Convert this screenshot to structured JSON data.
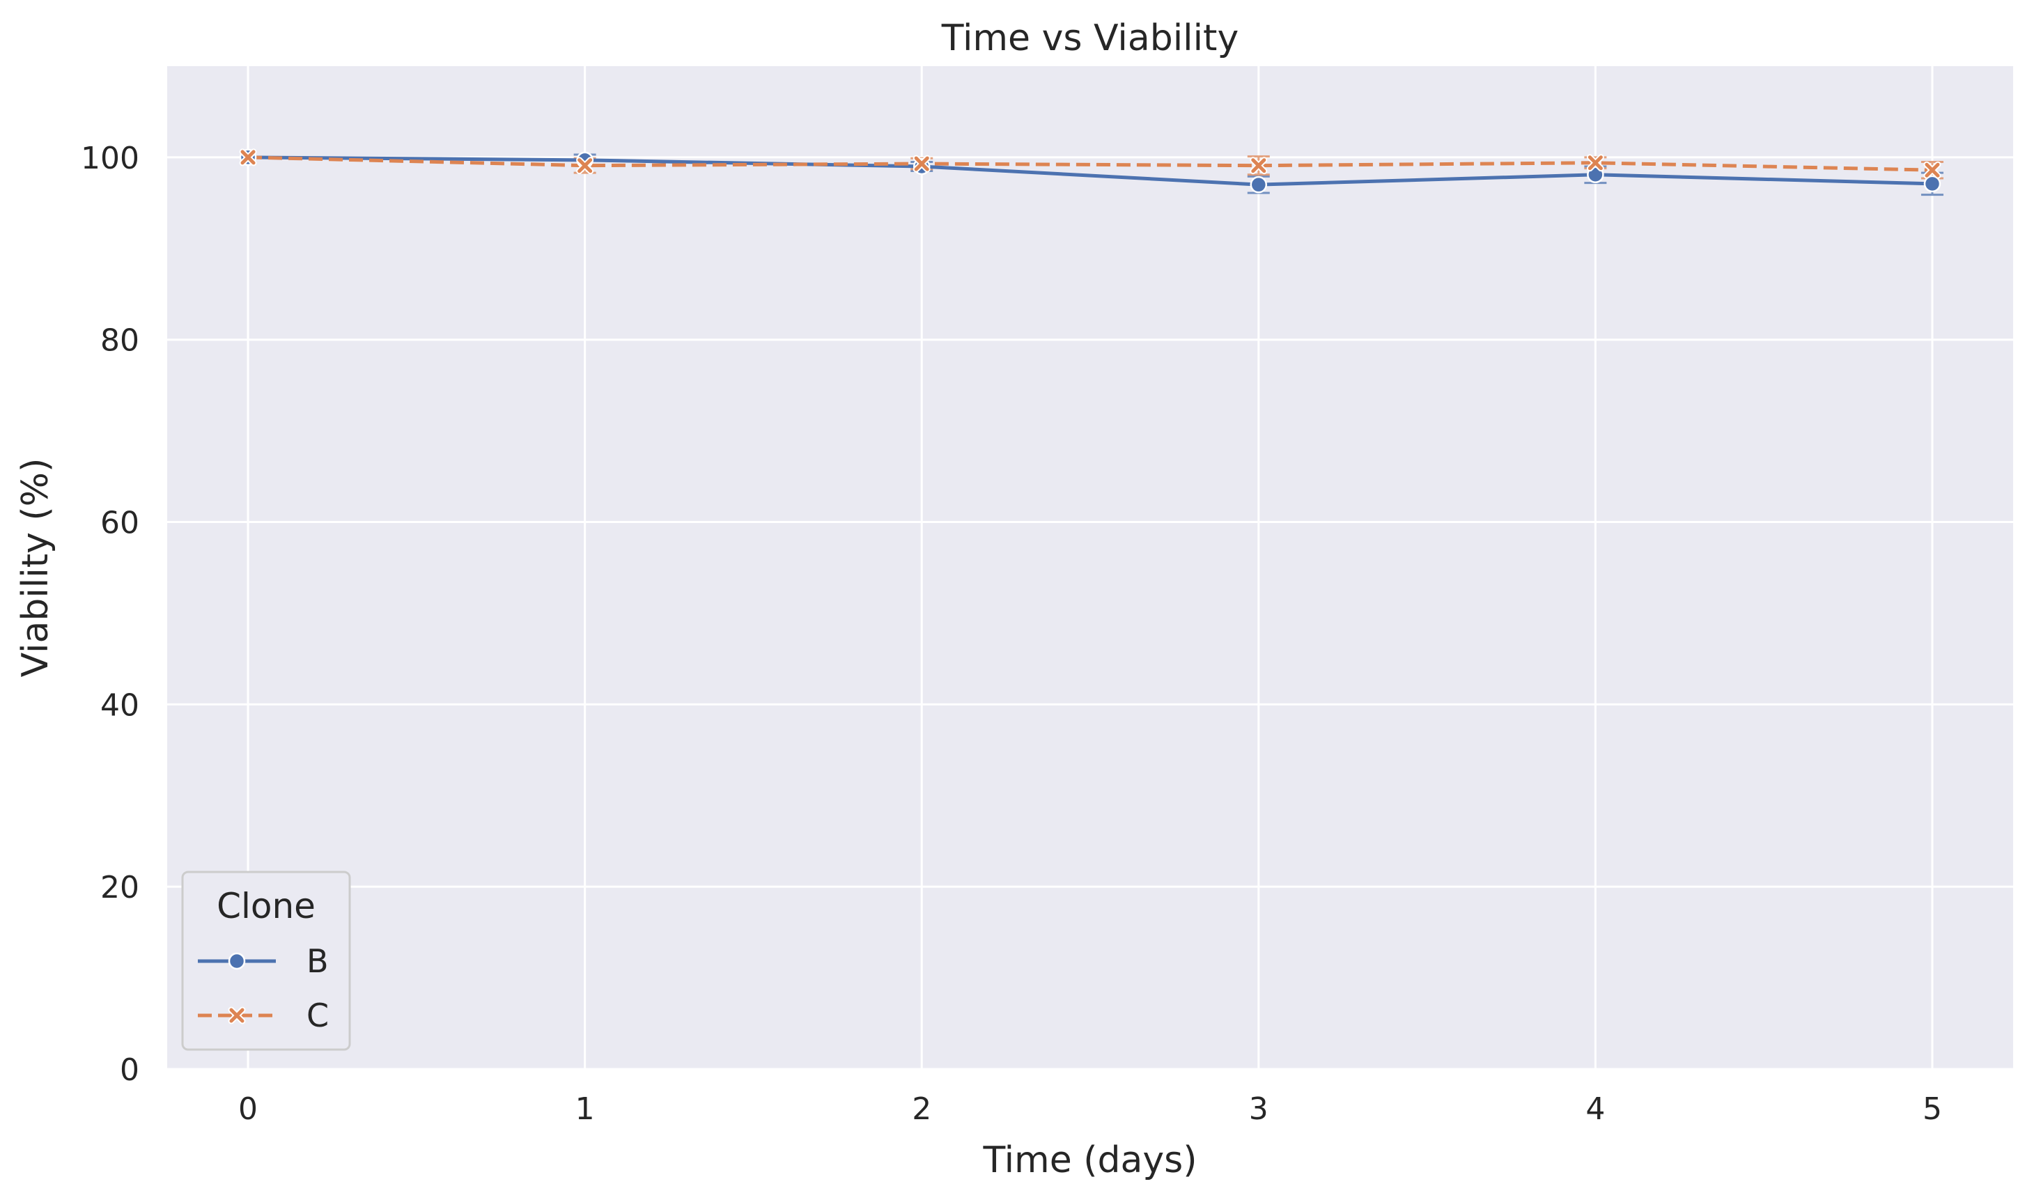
{
  "chart_data": {
    "type": "line",
    "title": "Time vs Viability",
    "xlabel": "Time (days)",
    "ylabel": "Viability (%)",
    "x": [
      0,
      1,
      2,
      3,
      4,
      5
    ],
    "xlim": [
      -0.24,
      5.24
    ],
    "ylim": [
      0,
      110
    ],
    "xticks": [
      "0",
      "1",
      "2",
      "3",
      "4",
      "5"
    ],
    "yticks": [
      "0",
      "20",
      "40",
      "60",
      "80",
      "100"
    ],
    "grid": true,
    "legend": {
      "title": "Clone",
      "placement": "lower-left"
    },
    "series": [
      {
        "name": "B",
        "color": "#4c72b0",
        "line_style": "solid",
        "marker": "circle",
        "values": [
          100.0,
          99.7,
          99.0,
          97.0,
          98.1,
          97.1
        ],
        "error": [
          0.0,
          0.6,
          0.5,
          0.9,
          0.9,
          1.2
        ]
      },
      {
        "name": "C",
        "color": "#dd8452",
        "line_style": "dashed",
        "marker": "x",
        "values": [
          100.0,
          99.1,
          99.3,
          99.1,
          99.4,
          98.6
        ],
        "error": [
          0.0,
          0.8,
          0.6,
          1.0,
          0.6,
          0.9
        ]
      }
    ],
    "colors": {
      "plot_background": "#eaeaf2",
      "grid": "#ffffff",
      "text": "#262626"
    }
  }
}
